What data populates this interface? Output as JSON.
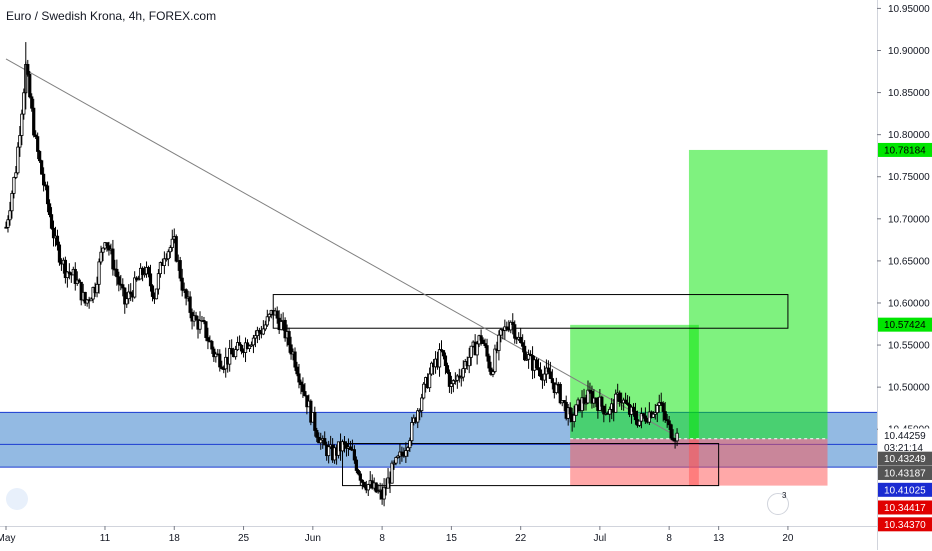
{
  "title": "Euro / Swedish Krona, 4h, FOREX.com",
  "colors": {
    "candle": "#000000",
    "trendline": "#808080",
    "demand_zone": "#6fa3d9",
    "demand_zone_line": "#1a3bd1",
    "target_zone": "#00e600",
    "stop_zone": "#ff5252",
    "box_stroke": "#000000"
  },
  "chart_data": {
    "type": "candlestick",
    "symbol": "Euro / Swedish Krona",
    "timeframe": "4h",
    "source": "FOREX.com",
    "y_axis": {
      "ticks": [
        "10.95000",
        "10.90000",
        "10.85000",
        "10.80000",
        "10.75000",
        "10.70000",
        "10.65000",
        "10.60000",
        "10.55000",
        "10.50000",
        "10.45000"
      ],
      "ylim": [
        10.335,
        10.96
      ]
    },
    "x_axis": {
      "ticks": [
        "May",
        "11",
        "18",
        "25",
        "Jun",
        "8",
        "15",
        "22",
        "Jul",
        "8",
        "13",
        "20"
      ],
      "tick_x_day": [
        0,
        10,
        17,
        24,
        31,
        38,
        45,
        52,
        60,
        67,
        72,
        79
      ],
      "xlim_day": [
        0,
        88
      ]
    },
    "price_path": [
      [
        0,
        10.69
      ],
      [
        1,
        10.76
      ],
      [
        2,
        10.88
      ],
      [
        3,
        10.79
      ],
      [
        4,
        10.73
      ],
      [
        5,
        10.67
      ],
      [
        6,
        10.64
      ],
      [
        7,
        10.63
      ],
      [
        8,
        10.6
      ],
      [
        9,
        10.62
      ],
      [
        10,
        10.68
      ],
      [
        11,
        10.64
      ],
      [
        12,
        10.6
      ],
      [
        13,
        10.62
      ],
      [
        14,
        10.64
      ],
      [
        15,
        10.61
      ],
      [
        16,
        10.66
      ],
      [
        17,
        10.67
      ],
      [
        18,
        10.61
      ],
      [
        19,
        10.58
      ],
      [
        20,
        10.57
      ],
      [
        21,
        10.54
      ],
      [
        22,
        10.53
      ],
      [
        23,
        10.54
      ],
      [
        24,
        10.55
      ],
      [
        25,
        10.56
      ],
      [
        26,
        10.57
      ],
      [
        27,
        10.59
      ],
      [
        28,
        10.57
      ],
      [
        29,
        10.54
      ],
      [
        30,
        10.5
      ],
      [
        31,
        10.46
      ],
      [
        32,
        10.43
      ],
      [
        33,
        10.42
      ],
      [
        34,
        10.43
      ],
      [
        35,
        10.42
      ],
      [
        36,
        10.39
      ],
      [
        37,
        10.38
      ],
      [
        38,
        10.37
      ],
      [
        39,
        10.4
      ],
      [
        40,
        10.42
      ],
      [
        41,
        10.45
      ],
      [
        42,
        10.49
      ],
      [
        43,
        10.52
      ],
      [
        44,
        10.54
      ],
      [
        45,
        10.5
      ],
      [
        46,
        10.52
      ],
      [
        47,
        10.54
      ],
      [
        48,
        10.56
      ],
      [
        49,
        10.52
      ],
      [
        50,
        10.56
      ],
      [
        51,
        10.58
      ],
      [
        52,
        10.55
      ],
      [
        53,
        10.53
      ],
      [
        54,
        10.52
      ],
      [
        55,
        10.51
      ],
      [
        56,
        10.49
      ],
      [
        57,
        10.46
      ],
      [
        58,
        10.48
      ],
      [
        59,
        10.49
      ],
      [
        60,
        10.48
      ],
      [
        61,
        10.47
      ],
      [
        62,
        10.49
      ],
      [
        63,
        10.47
      ],
      [
        64,
        10.46
      ],
      [
        65,
        10.47
      ],
      [
        66,
        10.48
      ],
      [
        67,
        10.45
      ],
      [
        68,
        10.44
      ]
    ],
    "trendline": {
      "from": [
        0,
        10.89
      ],
      "to": [
        68,
        10.44
      ]
    },
    "demand_zone": {
      "top": 10.47,
      "bottom": 10.405,
      "mid": 10.432
    },
    "boxes": [
      {
        "x0": 27,
        "x1": 79,
        "top": 10.61,
        "bottom": 10.57
      },
      {
        "x0": 34,
        "x1": 72,
        "top": 10.433,
        "bottom": 10.383
      }
    ],
    "position": {
      "entry": 10.4386,
      "target": 10.78184,
      "stop": 10.383,
      "long_x0": 69,
      "long_x1": 83,
      "small_x0": 57,
      "small_x1": 70,
      "small_target": 10.574
    },
    "price_tags": [
      {
        "label": "10.78184",
        "value": 10.78184,
        "bg": "#00e600",
        "fg": "#000000"
      },
      {
        "label": "10.57424",
        "value": 10.57424,
        "bg": "#00e600",
        "fg": "#000000"
      },
      {
        "label": "10.44259",
        "value": 10.44259,
        "bg": "#ffffff",
        "fg": "#131722"
      },
      {
        "label": "03:21:14",
        "value": 10.4282,
        "bg": "#ffffff",
        "fg": "#131722"
      },
      {
        "label": "10.43249",
        "value": 10.415,
        "bg": "#555555",
        "fg": "#ffffff"
      },
      {
        "label": "10.43187",
        "value": 10.398,
        "bg": "#555555",
        "fg": "#ffffff"
      },
      {
        "label": "10.41025",
        "value": 10.378,
        "bg": "#1a2bd1",
        "fg": "#ffffff"
      },
      {
        "label": "10.34417",
        "value": 10.357,
        "bg": "#e00000",
        "fg": "#ffffff"
      },
      {
        "label": "10.34370",
        "value": 10.337,
        "bg": "#e00000",
        "fg": "#ffffff"
      }
    ]
  },
  "alert_count": "3"
}
